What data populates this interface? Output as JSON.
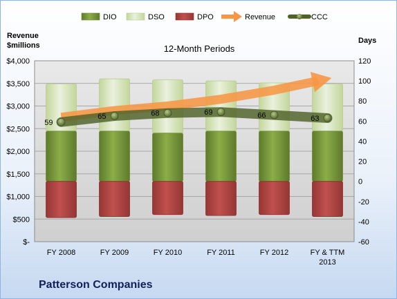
{
  "company": "Patterson Companies",
  "colors": {
    "dio": "#77933c",
    "dso": "#d7e4bd",
    "dpo": "#c0504d",
    "revenue": "#f79646",
    "ccc": "#4f6228"
  },
  "chart_data": {
    "type": "bar",
    "title": "12-Month Periods",
    "y_left_label": [
      "Revenue",
      "$millions"
    ],
    "y_right_label": "Days",
    "y_left_ticks": [
      "$4,000",
      "$3,500",
      "$3,000",
      "$2,500",
      "$2,000",
      "$1,500",
      "$1,000",
      "$500",
      "$-"
    ],
    "y_left_range": [
      0,
      4000
    ],
    "y_right_range": [
      -60,
      120
    ],
    "y_right_ticks": [
      120,
      100,
      80,
      60,
      40,
      20,
      0,
      -20,
      -40,
      -60
    ],
    "categories": [
      [
        "FY 2008"
      ],
      [
        "FY 2009"
      ],
      [
        "FY 2010"
      ],
      [
        "FY 2011"
      ],
      [
        "FY 2012"
      ],
      [
        "FY & TTM",
        "2013"
      ]
    ],
    "legend": [
      "DIO",
      "DSO",
      "DPO",
      "Revenue",
      "CCC"
    ],
    "legend_position": "top",
    "grid": true,
    "series": [
      {
        "name": "DIO",
        "axis": "days",
        "values": [
          50,
          50,
          48,
          50,
          50,
          50
        ]
      },
      {
        "name": "DSO",
        "axis": "days",
        "values": [
          47,
          52,
          53,
          50,
          48,
          47
        ]
      },
      {
        "name": "DPO",
        "axis": "days",
        "values": [
          -36,
          -35,
          -33,
          -34,
          -33,
          -35
        ]
      },
      {
        "name": "Revenue",
        "axis": "revenue",
        "values": [
          2750,
          2900,
          3000,
          3150,
          3350,
          3600
        ]
      },
      {
        "name": "CCC",
        "axis": "days",
        "values": [
          59,
          65,
          68,
          69,
          66,
          63
        ]
      }
    ]
  }
}
